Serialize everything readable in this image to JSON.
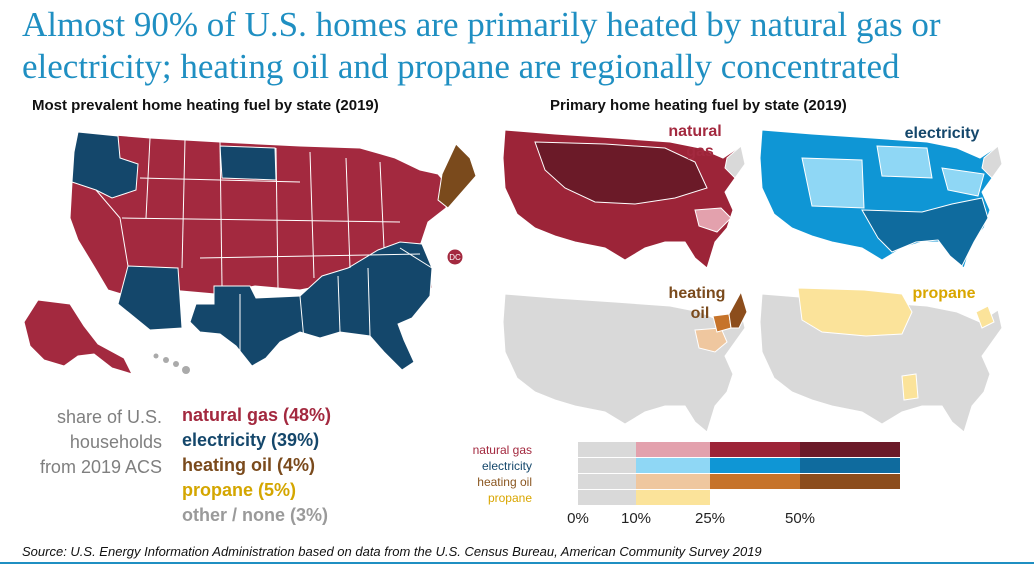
{
  "headline": {
    "line1": "Almost 90% of U.S. homes are primarily heated by natural gas or",
    "line2": "electricity; heating oil and propane are regionally concentrated"
  },
  "left_map": {
    "title": "Most prevalent home heating fuel by state (2019)",
    "dc_label": "DC"
  },
  "right_maps": {
    "title": "Primary home heating fuel by state (2019)",
    "panels": [
      {
        "label_lines": [
          "natural",
          "gas"
        ],
        "label_color": "#a3293f"
      },
      {
        "label_lines": [
          "electricity"
        ],
        "label_color": "#14476b"
      },
      {
        "label_lines": [
          "heating",
          "oil"
        ],
        "label_color": "#7a4a1c"
      },
      {
        "label_lines": [
          "propane"
        ],
        "label_color": "#d9a600"
      }
    ]
  },
  "share_label": [
    "share of U.S.",
    "households",
    "from 2019 ACS"
  ],
  "fuel_shares": [
    {
      "label": "natural gas (48%)",
      "fuel": "natural gas",
      "share": 48,
      "color": "#a3293f"
    },
    {
      "label": "electricity (39%)",
      "fuel": "electricity",
      "share": 39,
      "color": "#14476b"
    },
    {
      "label": "heating oil (4%)",
      "fuel": "heating oil",
      "share": 4,
      "color": "#7a4a1c"
    },
    {
      "label": "propane (5%)",
      "fuel": "propane",
      "share": 5,
      "color": "#d4a600"
    },
    {
      "label": "other / none (3%)",
      "fuel": "other / none",
      "share": 3,
      "color": "#9a9a9a"
    }
  ],
  "color_scale": {
    "rows": [
      {
        "label": "natural gas",
        "label_color": "#a3293f",
        "colors": [
          "#d9d9d9",
          "#e3a1ad",
          "#9c2438",
          "#6b1a28"
        ]
      },
      {
        "label": "electricity",
        "label_color": "#14476b",
        "colors": [
          "#d9d9d9",
          "#8fd7f5",
          "#0f96d5",
          "#0f6b9e"
        ]
      },
      {
        "label": "heating oil",
        "label_color": "#8a5620",
        "colors": [
          "#d9d9d9",
          "#efc79f",
          "#c6732a",
          "#8c4d1c"
        ]
      },
      {
        "label": "propane",
        "label_color": "#d9a600",
        "colors": [
          "#d9d9d9",
          "#fbe39a"
        ]
      }
    ],
    "ticks": [
      "0%",
      "10%",
      "25%",
      "50%"
    ]
  },
  "colors": {
    "natural_gas": "#a3293f",
    "electricity": "#14476b",
    "heating_oil": "#7a4a1c",
    "propane": "#d4a600",
    "none": "#d9d9d9",
    "headline": "#1f8fc2"
  },
  "source": "Source: U.S. Energy Information Administration based on data from the U.S. Census Bureau, American Community Survey 2019"
}
